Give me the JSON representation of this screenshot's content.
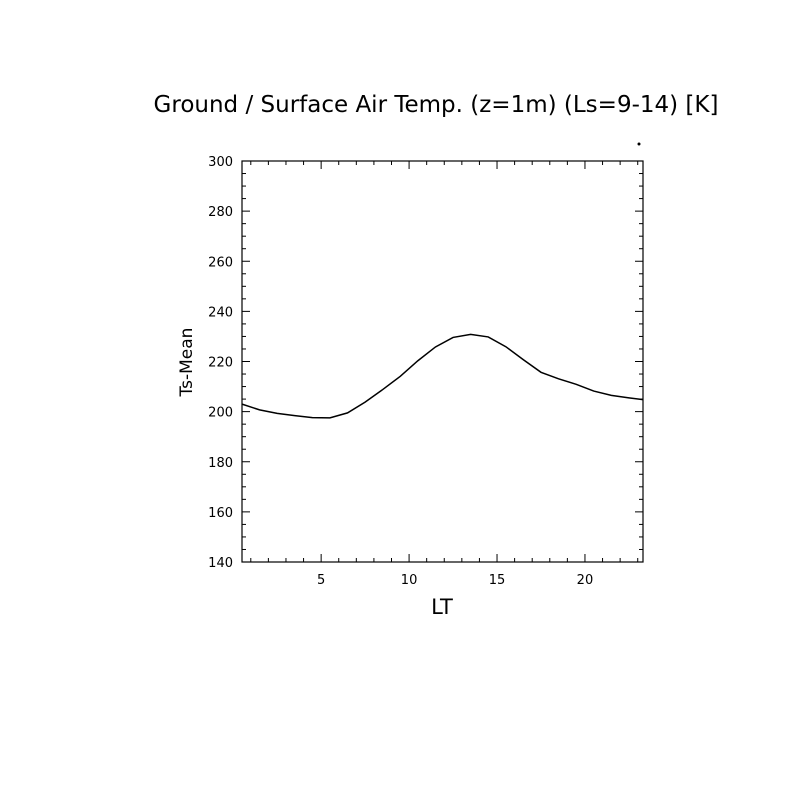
{
  "chart_data": {
    "type": "line",
    "title": "Ground / Surface Air Temp. (z=1m) (Ls=9-14) [K]",
    "xlabel": "LT",
    "ylabel": "Ts-Mean",
    "xlim": [
      0.5,
      23.3
    ],
    "ylim": [
      140,
      300
    ],
    "xticks": [
      5,
      10,
      15,
      20
    ],
    "yticks": [
      140,
      160,
      180,
      200,
      220,
      240,
      260,
      280,
      300
    ],
    "grid": false,
    "series": [
      {
        "x": [
          0.5,
          1.5,
          2.5,
          3.5,
          4.5,
          5.5,
          6.5,
          7.5,
          8.5,
          9.5,
          10.5,
          11.5,
          12.5,
          13.5,
          14.5,
          15.5,
          16.5,
          17.5,
          18.5,
          19.5,
          20.5,
          21.5,
          22.5,
          23.3
        ],
        "values": [
          203,
          200.7,
          199.3,
          198.4,
          197.6,
          197.5,
          199.5,
          203.8,
          208.8,
          214.1,
          220.3,
          225.8,
          229.6,
          230.8,
          229.8,
          225.9,
          220.7,
          215.7,
          213.1,
          210.9,
          208.2,
          206.5,
          205.5,
          204.8
        ]
      }
    ]
  }
}
